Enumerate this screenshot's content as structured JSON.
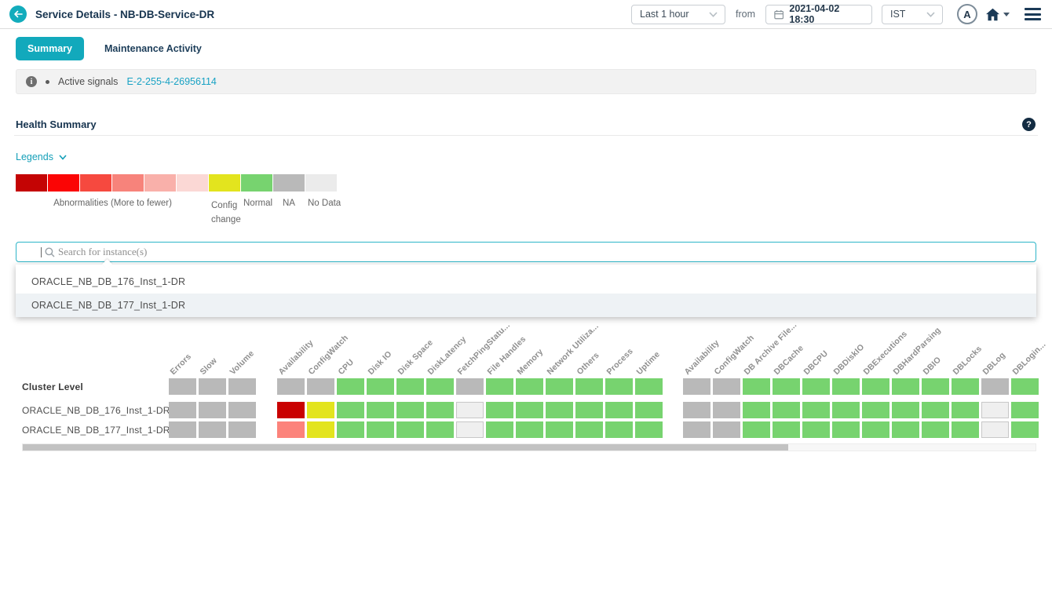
{
  "header": {
    "title": "Service Details - NB-DB-Service-DR",
    "time_range": "Last 1 hour",
    "from_label": "from",
    "datetime": "2021-04-02 18:30",
    "timezone": "IST",
    "avatar_letter": "A"
  },
  "tabs": [
    {
      "label": "Summary",
      "active": true
    },
    {
      "label": "Maintenance Activity",
      "active": false
    }
  ],
  "signals": {
    "label": "Active signals",
    "link": "E-2-255-4-26956114"
  },
  "section": {
    "title": "Health Summary"
  },
  "legends": {
    "toggle_label": "Legends",
    "swatches": [
      "#c40404",
      "#fb0505",
      "#f6493f",
      "#f7837b",
      "#f9b0aa",
      "#fbd8d5",
      "#e3e41e",
      "#77d36f",
      "#b9b9b9",
      "#ebebeb"
    ],
    "abnormal_label": "Abnormalities (More to fewer)",
    "config_label": "Config change",
    "normal_label": "Normal",
    "na_label": "NA",
    "nodata_label": "No Data"
  },
  "search": {
    "placeholder": "Search for instance(s)"
  },
  "suggestions": [
    "ORACLE_NB_DB_176_Inst_1-DR",
    "ORACLE_NB_DB_177_Inst_1-DR"
  ],
  "colors": {
    "accent_teal": "#12a9bc",
    "navy": "#17344f",
    "link_teal": "#18a2c4",
    "na": "#b9b9b9",
    "normal": "#77d36f",
    "no_data": "#efefef",
    "config_change": "#e3e41e",
    "critical": "#c90101",
    "high": "#fc837b"
  },
  "heatmap": {
    "type": "heatmap",
    "legend_states": [
      "critical",
      "high",
      "config_change",
      "normal",
      "na",
      "no_data"
    ],
    "column_groups": [
      {
        "name": "kpi-group-transactions",
        "columns": [
          "Errors",
          "Slow",
          "Volume"
        ]
      },
      {
        "name": "kpi-group-host",
        "columns": [
          "Availability",
          "ConfigWatch",
          "CPU",
          "Disk IO",
          "Disk Space",
          "DiskLatency",
          "FetchPingStatu...",
          "File Handles",
          "Memory",
          "Network Utiliza...",
          "Others",
          "Process",
          "Uptime"
        ]
      },
      {
        "name": "kpi-group-database",
        "columns": [
          "Availability",
          "ConfigWatch",
          "DB Archive File...",
          "DBCache",
          "DBCPU",
          "DBDiskIO",
          "DBExecutions",
          "DBHardParsing",
          "DBIO",
          "DBLocks",
          "DBLog",
          "DBLogin..."
        ]
      }
    ],
    "rows": [
      {
        "label": "Cluster Level",
        "cells": [
          [
            "na",
            "na",
            "na"
          ],
          [
            "na",
            "na",
            "normal",
            "normal",
            "normal",
            "normal",
            "na",
            "normal",
            "normal",
            "normal",
            "normal",
            "normal",
            "normal"
          ],
          [
            "na",
            "na",
            "normal",
            "normal",
            "normal",
            "normal",
            "normal",
            "normal",
            "normal",
            "normal",
            "na",
            "normal"
          ]
        ]
      },
      {
        "label": "ORACLE_NB_DB_176_Inst_1-DR",
        "cells": [
          [
            "na",
            "na",
            "na"
          ],
          [
            "critical",
            "config_change",
            "normal",
            "normal",
            "normal",
            "normal",
            "no_data",
            "normal",
            "normal",
            "normal",
            "normal",
            "normal",
            "normal"
          ],
          [
            "na",
            "na",
            "normal",
            "normal",
            "normal",
            "normal",
            "normal",
            "normal",
            "normal",
            "normal",
            "no_data",
            "normal"
          ]
        ]
      },
      {
        "label": "ORACLE_NB_DB_177_Inst_1-DR",
        "cells": [
          [
            "na",
            "na",
            "na"
          ],
          [
            "high",
            "config_change",
            "normal",
            "normal",
            "normal",
            "normal",
            "no_data",
            "normal",
            "normal",
            "normal",
            "normal",
            "normal",
            "normal"
          ],
          [
            "na",
            "na",
            "normal",
            "normal",
            "normal",
            "normal",
            "normal",
            "normal",
            "normal",
            "normal",
            "no_data",
            "normal"
          ]
        ]
      }
    ]
  }
}
